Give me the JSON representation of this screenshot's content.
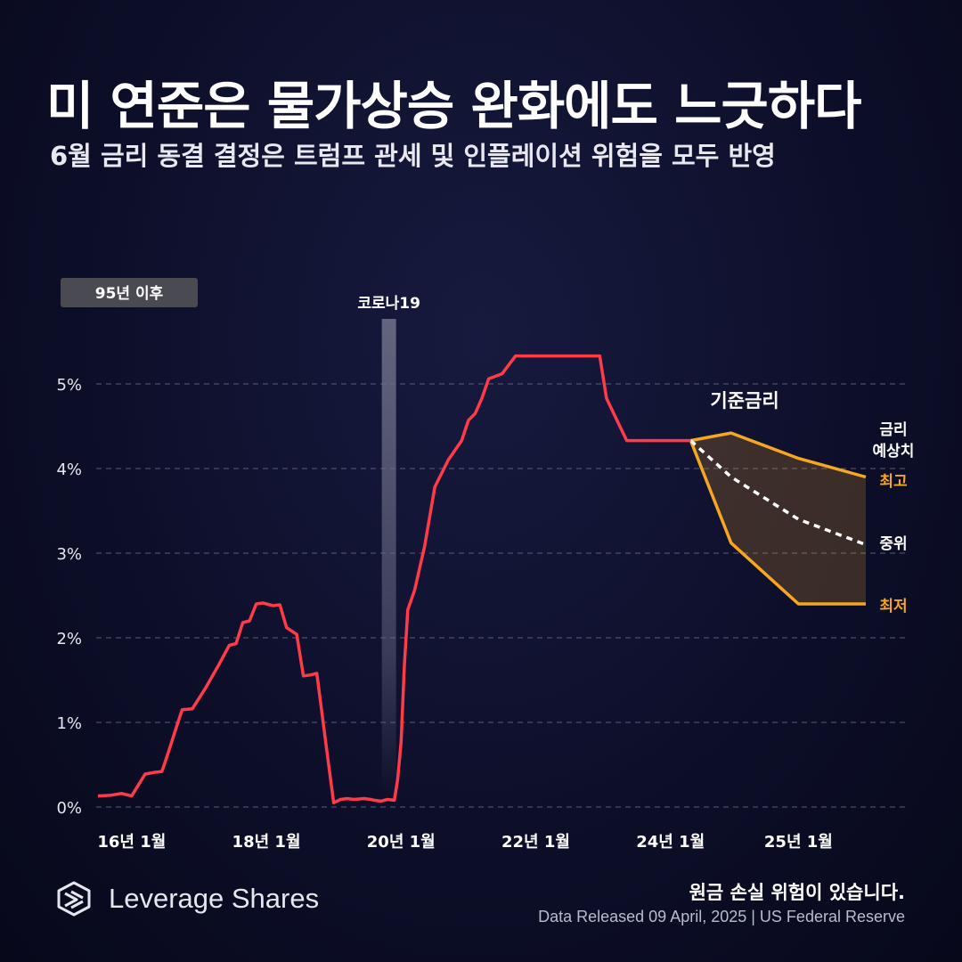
{
  "header": {
    "title": "미 연준은 물가상승 완화에도 느긋하다",
    "subtitle": "6월 금리 동결 결정은 트럼프 관세 및 인플레이션 위험을 모두 반영"
  },
  "footer": {
    "brand": "Leverage Shares",
    "risk_notice": "원금 손실 위험이 있습니다.",
    "source": "Data Released 09 April, 2025 | US Federal Reserve"
  },
  "colors": {
    "rate_line": "#ff3b4a",
    "projection": "#f5a623",
    "grid": "#5a5d78",
    "covid_band": "#6b6e86",
    "badge_bg": "#4a4a52"
  },
  "chart_data": {
    "type": "line",
    "title": "",
    "xlabel": "",
    "ylabel": "",
    "ylim": [
      0,
      5
    ],
    "y_ticks": [
      "0%",
      "1%",
      "2%",
      "3%",
      "4%",
      "5%"
    ],
    "x_ticks": [
      {
        "label": "16년 1월",
        "x": 2016.0
      },
      {
        "label": "18년 1월",
        "x": 2018.0
      },
      {
        "label": "20년 1월",
        "x": 2020.0
      },
      {
        "label": "22년 1월",
        "x": 2022.0
      },
      {
        "label": "24년 1월",
        "x": 2024.0
      },
      {
        "label": "25년 1월",
        "x": 2025.9
      }
    ],
    "badge": "95년 이후",
    "covid_band": {
      "label": "코로나19",
      "x": 2019.82
    },
    "series": [
      {
        "name": "기준금리",
        "x": [
          2015.5,
          2015.7,
          2015.85,
          2016.0,
          2016.2,
          2016.35,
          2016.45,
          2016.55,
          2016.65,
          2016.75,
          2016.9,
          2017.1,
          2017.3,
          2017.45,
          2017.55,
          2017.65,
          2017.75,
          2017.85,
          2017.95,
          2018.1,
          2018.2,
          2018.3,
          2018.45,
          2018.55,
          2018.65,
          2018.75,
          2018.9,
          2019.0,
          2019.1,
          2019.2,
          2019.3,
          2019.45,
          2019.55,
          2019.6,
          2019.7,
          2019.8,
          2019.9,
          2019.95,
          2020.0,
          2020.05,
          2020.1,
          2020.2,
          2020.35,
          2020.5,
          2020.7,
          2020.9,
          2021.0,
          2021.1,
          2021.2,
          2021.3,
          2021.5,
          2021.7,
          2021.85,
          2021.95,
          2022.05,
          2022.15,
          2022.25,
          2022.35,
          2022.45,
          2022.55,
          2022.65,
          2022.75,
          2022.85,
          2022.95,
          2023.05,
          2023.2,
          2023.35,
          2023.5,
          2023.65,
          2023.75,
          2023.85,
          2023.95,
          2024.1,
          2024.3
        ],
        "values": [
          0.13,
          0.14,
          0.16,
          0.13,
          0.39,
          0.41,
          0.42,
          0.66,
          0.91,
          1.15,
          1.16,
          1.41,
          1.69,
          1.91,
          1.93,
          2.18,
          2.2,
          2.4,
          2.41,
          2.38,
          2.39,
          2.12,
          2.04,
          1.55,
          1.56,
          1.58,
          0.65,
          0.05,
          0.09,
          0.1,
          0.09,
          0.1,
          0.09,
          0.08,
          0.07,
          0.09,
          0.08,
          0.33,
          0.77,
          1.68,
          2.33,
          2.56,
          3.08,
          3.78,
          4.1,
          4.33,
          4.57,
          4.65,
          4.83,
          5.06,
          5.12,
          5.33,
          5.33,
          5.33,
          5.33,
          5.33,
          5.33,
          5.33,
          5.33,
          5.33,
          5.33,
          5.33,
          5.33,
          5.33,
          4.83,
          4.58,
          4.33,
          4.33,
          4.33,
          4.33,
          4.33,
          4.33,
          4.33,
          4.33
        ]
      },
      {
        "name": "최고",
        "x": [
          2024.3,
          2024.9,
          2025.9,
          2026.9
        ],
        "values": [
          4.33,
          4.42,
          4.12,
          3.9
        ]
      },
      {
        "name": "중위",
        "x": [
          2024.3,
          2024.9,
          2025.9,
          2026.9
        ],
        "values": [
          4.33,
          3.9,
          3.4,
          3.1
        ]
      },
      {
        "name": "최저",
        "x": [
          2024.3,
          2024.9,
          2025.9,
          2026.9
        ],
        "values": [
          4.33,
          3.12,
          2.4,
          2.4
        ]
      }
    ],
    "annotations": {
      "base_rate": "기준금리",
      "projection_title": [
        "금리",
        "예상치"
      ],
      "high": "최고",
      "median": "중위",
      "low": "최저"
    }
  }
}
